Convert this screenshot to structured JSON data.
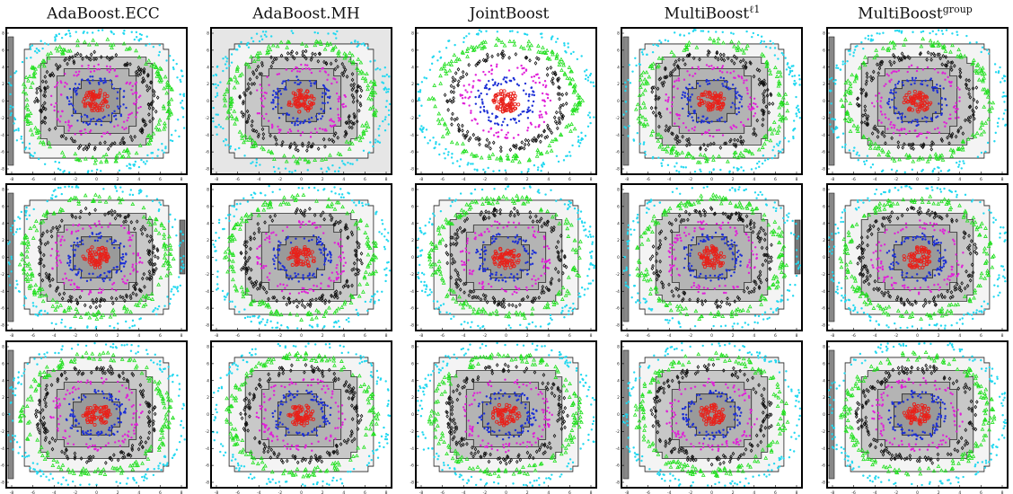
{
  "columns": [
    {
      "title": "AdaBoost.ECC",
      "sup": ""
    },
    {
      "title": "AdaBoost.MH",
      "sup": ""
    },
    {
      "title": "JointBoost",
      "sup": ""
    },
    {
      "title": "MultiBoost",
      "sup": "ℓ1"
    },
    {
      "title": "MultiBoost",
      "sup": "group"
    }
  ],
  "rows": 3,
  "axis_ticks": [
    "-8",
    "-6",
    "-4",
    "-2",
    "0",
    "2",
    "4",
    "6",
    "8"
  ],
  "colors": {
    "ring_center": "#e8211a",
    "ring_2": "#1c2fd6",
    "ring_3": "#e020d8",
    "ring_4": "#111111",
    "ring_5": "#22e020",
    "ring_6": "#22d8f0",
    "region_dark": "#9a9a9a",
    "region_mid": "#c8c8c8",
    "region_light": "#e6e6e6"
  }
}
